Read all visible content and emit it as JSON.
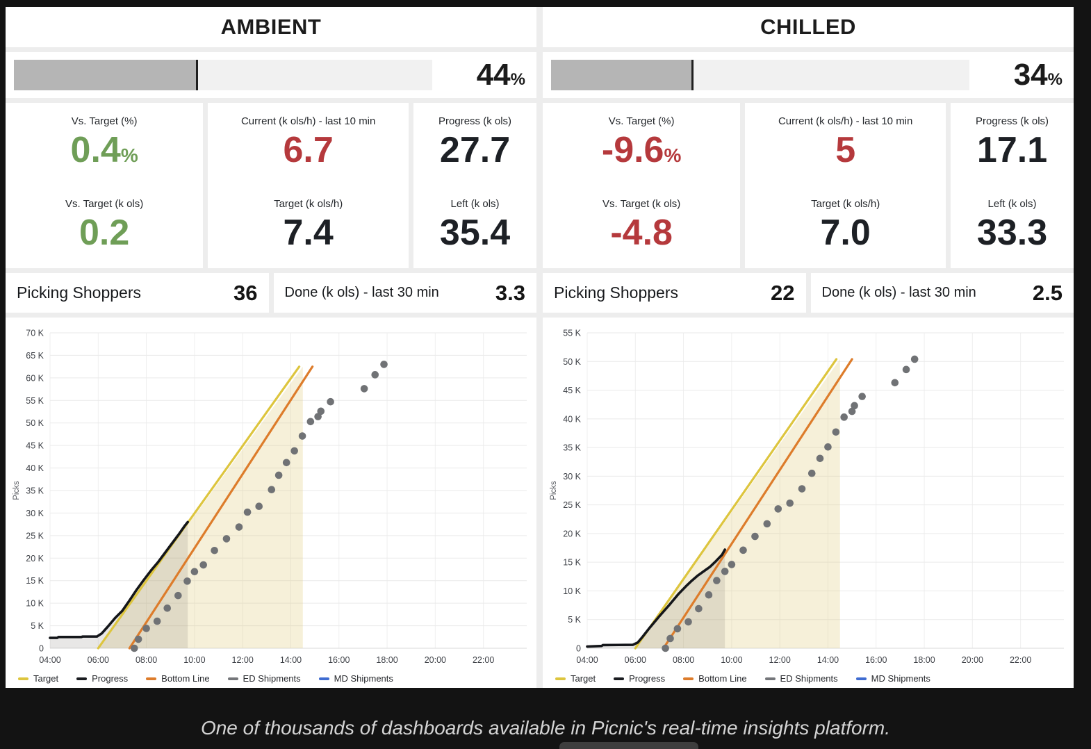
{
  "caption": "One of thousands of dashboards available in Picnic's real-time insights platform.",
  "legend": [
    {
      "label": "Target",
      "color": "#ddc53e"
    },
    {
      "label": "Progress",
      "color": "#1a1c20"
    },
    {
      "label": "Bottom Line",
      "color": "#dd7c2b"
    },
    {
      "label": "ED Shipments",
      "color": "#74767a"
    },
    {
      "label": "MD Shipments",
      "color": "#3f6cd1"
    }
  ],
  "panels": [
    {
      "title": "AMBIENT",
      "progress_bar": {
        "percent": "44",
        "unit": "%",
        "fill_pct": 44
      },
      "stat_columns": [
        {
          "top": {
            "label": "Vs. Target (%)",
            "value": "0.4",
            "suffix": "%",
            "color": "#6f9e57"
          },
          "bottom": {
            "label": "Vs. Target (k ols)",
            "value": "0.2",
            "color": "#6f9e57"
          }
        },
        {
          "top": {
            "label": "Current (k ols/h) - last 10 min",
            "value": "6.7",
            "color": "#b5393c"
          },
          "bottom": {
            "label": "Target (k ols/h)",
            "value": "7.4",
            "color": "#1d2025"
          }
        },
        {
          "top": {
            "label": "Progress (k ols)",
            "value": "27.7",
            "color": "#1d2025"
          },
          "bottom": {
            "label": "Left (k ols)",
            "value": "35.4",
            "color": "#1d2025"
          }
        }
      ],
      "picking": {
        "label": "Picking Shoppers",
        "value": "36"
      },
      "done": {
        "label": "Done (k ols) - last 30 min",
        "value": "3.3"
      }
    },
    {
      "title": "CHILLED",
      "progress_bar": {
        "percent": "34",
        "unit": "%",
        "fill_pct": 34
      },
      "stat_columns": [
        {
          "top": {
            "label": "Vs. Target (%)",
            "value": "-9.6",
            "suffix": "%",
            "color": "#b5393c"
          },
          "bottom": {
            "label": "Vs. Target (k ols)",
            "value": "-4.8",
            "color": "#b5393c"
          }
        },
        {
          "top": {
            "label": "Current (k ols/h) - last 10 min",
            "value": "5",
            "color": "#b5393c"
          },
          "bottom": {
            "label": "Target (k ols/h)",
            "value": "7.0",
            "color": "#1d2025"
          }
        },
        {
          "top": {
            "label": "Progress (k ols)",
            "value": "17.1",
            "color": "#1d2025"
          },
          "bottom": {
            "label": "Left (k ols)",
            "value": "33.3",
            "color": "#1d2025"
          }
        }
      ],
      "picking": {
        "label": "Picking Shoppers",
        "value": "22"
      },
      "done": {
        "label": "Done (k ols) - last 30 min",
        "value": "2.5"
      }
    }
  ],
  "chart_data": [
    {
      "type": "line",
      "title": "AMBIENT picks over time",
      "xlabel": "",
      "ylabel": "Picks",
      "x_unit": "hour of day",
      "y_unit": "thousand picks",
      "xlim": [
        4,
        23.8
      ],
      "ylim": [
        0,
        70
      ],
      "grid": true,
      "legend_position": "bottom",
      "x_ticks": [
        {
          "t": 4,
          "label": "04:00"
        },
        {
          "t": 6,
          "label": "06:00"
        },
        {
          "t": 8,
          "label": "08:00"
        },
        {
          "t": 10,
          "label": "10:00"
        },
        {
          "t": 12,
          "label": "12:00"
        },
        {
          "t": 14,
          "label": "14:00"
        },
        {
          "t": 16,
          "label": "16:00"
        },
        {
          "t": 18,
          "label": "18:00"
        },
        {
          "t": 20,
          "label": "20:00"
        },
        {
          "t": 22,
          "label": "22:00"
        }
      ],
      "y_ticks": [
        {
          "v": 0,
          "label": "0"
        },
        {
          "v": 5,
          "label": "5 K"
        },
        {
          "v": 10,
          "label": "10 K"
        },
        {
          "v": 15,
          "label": "15 K"
        },
        {
          "v": 20,
          "label": "20 K"
        },
        {
          "v": 25,
          "label": "25 K"
        },
        {
          "v": 30,
          "label": "30 K"
        },
        {
          "v": 35,
          "label": "35 K"
        },
        {
          "v": 40,
          "label": "40 K"
        },
        {
          "v": 45,
          "label": "45 K"
        },
        {
          "v": 50,
          "label": "50 K"
        },
        {
          "v": 55,
          "label": "55 K"
        },
        {
          "v": 60,
          "label": "60 K"
        },
        {
          "v": 65,
          "label": "65 K"
        },
        {
          "v": 70,
          "label": "70 K"
        }
      ],
      "shade_end_x": 14.5,
      "target_shade_color": "rgba(224,200,118,0.28)",
      "progress_shade_color": "rgba(110,108,100,0.16)",
      "series": [
        {
          "name": "Target",
          "kind": "line",
          "color": "#ddc53e",
          "points": [
            [
              6,
              0
            ],
            [
              14.35,
              62.5
            ]
          ]
        },
        {
          "name": "Progress",
          "kind": "line",
          "color": "#14161a",
          "points": [
            [
              4,
              2.3
            ],
            [
              4.3,
              2.3
            ],
            [
              4.35,
              2.5
            ],
            [
              5.3,
              2.5
            ],
            [
              5.35,
              2.6
            ],
            [
              5.95,
              2.6
            ],
            [
              6.15,
              3.3
            ],
            [
              6.4,
              4.8
            ],
            [
              6.7,
              6.7
            ],
            [
              7.0,
              8.3
            ],
            [
              7.3,
              10.6
            ],
            [
              7.6,
              13.0
            ],
            [
              7.9,
              15.2
            ],
            [
              8.2,
              17.3
            ],
            [
              8.5,
              19.2
            ],
            [
              9.0,
              22.8
            ],
            [
              9.35,
              25.3
            ],
            [
              9.6,
              27.2
            ],
            [
              9.72,
              28.0
            ]
          ]
        },
        {
          "name": "Bottom Line",
          "kind": "line",
          "color": "#dd7c2b",
          "points": [
            [
              7.3,
              0
            ],
            [
              14.9,
              62.5
            ]
          ]
        },
        {
          "name": "ED Shipments",
          "kind": "scatter",
          "color": "#707275",
          "points": [
            [
              7.5,
              0
            ],
            [
              7.67,
              2.0
            ],
            [
              8.0,
              4.4
            ],
            [
              8.45,
              6.0
            ],
            [
              8.87,
              8.9
            ],
            [
              9.32,
              11.7
            ],
            [
              9.7,
              14.9
            ],
            [
              10.0,
              17.0
            ],
            [
              10.37,
              18.5
            ],
            [
              10.83,
              21.7
            ],
            [
              11.33,
              24.3
            ],
            [
              11.85,
              26.9
            ],
            [
              12.2,
              30.2
            ],
            [
              12.68,
              31.5
            ],
            [
              13.2,
              35.2
            ],
            [
              13.5,
              38.4
            ],
            [
              13.82,
              41.2
            ],
            [
              14.15,
              43.8
            ],
            [
              14.48,
              47.1
            ],
            [
              14.82,
              50.3
            ],
            [
              15.13,
              51.4
            ],
            [
              15.25,
              52.6
            ],
            [
              15.65,
              54.7
            ],
            [
              17.05,
              57.6
            ],
            [
              17.5,
              60.7
            ],
            [
              17.87,
              63.0
            ]
          ]
        },
        {
          "name": "MD Shipments",
          "kind": "scatter",
          "color": "#3f6cd1",
          "points": []
        }
      ]
    },
    {
      "type": "line",
      "title": "CHILLED picks over time",
      "xlabel": "",
      "ylabel": "Picks",
      "x_unit": "hour of day",
      "y_unit": "thousand picks",
      "xlim": [
        4,
        23.8
      ],
      "ylim": [
        0,
        55
      ],
      "grid": true,
      "legend_position": "bottom",
      "x_ticks": [
        {
          "t": 4,
          "label": "04:00"
        },
        {
          "t": 6,
          "label": "06:00"
        },
        {
          "t": 8,
          "label": "08:00"
        },
        {
          "t": 10,
          "label": "10:00"
        },
        {
          "t": 12,
          "label": "12:00"
        },
        {
          "t": 14,
          "label": "14:00"
        },
        {
          "t": 16,
          "label": "16:00"
        },
        {
          "t": 18,
          "label": "18:00"
        },
        {
          "t": 20,
          "label": "20:00"
        },
        {
          "t": 22,
          "label": "22:00"
        }
      ],
      "y_ticks": [
        {
          "v": 0,
          "label": "0"
        },
        {
          "v": 5,
          "label": "5 K"
        },
        {
          "v": 10,
          "label": "10 K"
        },
        {
          "v": 15,
          "label": "15 K"
        },
        {
          "v": 20,
          "label": "20 K"
        },
        {
          "v": 25,
          "label": "25 K"
        },
        {
          "v": 30,
          "label": "30 K"
        },
        {
          "v": 35,
          "label": "35 K"
        },
        {
          "v": 40,
          "label": "40 K"
        },
        {
          "v": 45,
          "label": "45 K"
        },
        {
          "v": 50,
          "label": "50 K"
        },
        {
          "v": 55,
          "label": "55 K"
        }
      ],
      "shade_end_x": 14.5,
      "target_shade_color": "rgba(224,200,118,0.28)",
      "progress_shade_color": "rgba(110,108,100,0.16)",
      "series": [
        {
          "name": "Target",
          "kind": "line",
          "color": "#ddc53e",
          "points": [
            [
              6,
              0
            ],
            [
              14.35,
              50.4
            ]
          ]
        },
        {
          "name": "Progress",
          "kind": "line",
          "color": "#14161a",
          "points": [
            [
              4,
              0.3
            ],
            [
              4.6,
              0.4
            ],
            [
              4.65,
              0.55
            ],
            [
              5.9,
              0.6
            ],
            [
              6.1,
              1.0
            ],
            [
              6.3,
              2.0
            ],
            [
              6.6,
              3.6
            ],
            [
              7.0,
              5.6
            ],
            [
              7.4,
              7.5
            ],
            [
              7.8,
              9.5
            ],
            [
              8.1,
              10.8
            ],
            [
              8.35,
              11.8
            ],
            [
              8.6,
              12.7
            ],
            [
              8.9,
              13.6
            ],
            [
              9.1,
              14.2
            ],
            [
              9.35,
              15.2
            ],
            [
              9.6,
              16.3
            ],
            [
              9.72,
              17.2
            ]
          ]
        },
        {
          "name": "Bottom Line",
          "kind": "line",
          "color": "#dd7c2b",
          "points": [
            [
              7.17,
              0
            ],
            [
              15.0,
              50.4
            ]
          ]
        },
        {
          "name": "ED Shipments",
          "kind": "scatter",
          "color": "#707275",
          "points": [
            [
              7.25,
              0
            ],
            [
              7.45,
              1.7
            ],
            [
              7.75,
              3.4
            ],
            [
              8.2,
              4.6
            ],
            [
              8.63,
              6.9
            ],
            [
              9.05,
              9.3
            ],
            [
              9.38,
              11.8
            ],
            [
              9.72,
              13.4
            ],
            [
              10.0,
              14.6
            ],
            [
              10.48,
              17.1
            ],
            [
              10.97,
              19.5
            ],
            [
              11.47,
              21.7
            ],
            [
              11.93,
              24.3
            ],
            [
              12.42,
              25.3
            ],
            [
              12.92,
              27.8
            ],
            [
              13.33,
              30.5
            ],
            [
              13.67,
              33.1
            ],
            [
              14.0,
              35.1
            ],
            [
              14.33,
              37.7
            ],
            [
              14.67,
              40.3
            ],
            [
              15.0,
              41.3
            ],
            [
              15.1,
              42.3
            ],
            [
              15.42,
              43.9
            ],
            [
              16.78,
              46.3
            ],
            [
              17.25,
              48.6
            ],
            [
              17.6,
              50.4
            ]
          ]
        },
        {
          "name": "MD Shipments",
          "kind": "scatter",
          "color": "#3f6cd1",
          "points": []
        }
      ]
    }
  ]
}
